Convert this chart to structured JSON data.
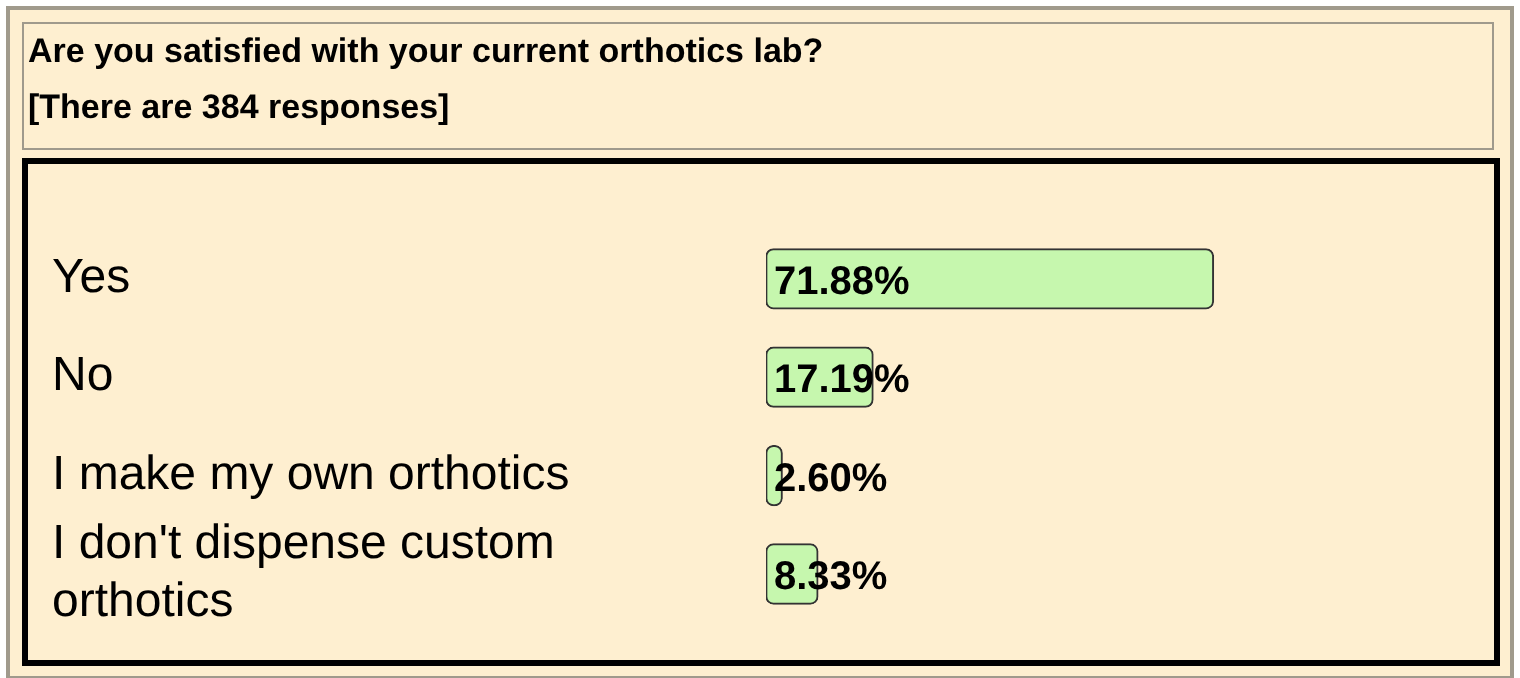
{
  "chart_data": {
    "type": "bar",
    "orientation": "horizontal",
    "title": "Are you satisfied with your current orthotics lab?",
    "subtitle": "[There are 384 responses]",
    "categories": [
      "Yes",
      "No",
      "I make my own orthotics",
      "I don't dispense custom orthotics"
    ],
    "values": [
      71.88,
      17.19,
      2.6,
      8.33
    ],
    "value_labels": [
      "71.88%",
      "17.19%",
      "2.60%",
      "8.33%"
    ],
    "color": "#c6f7ae",
    "tick_labels": "y",
    "legend": false
  }
}
